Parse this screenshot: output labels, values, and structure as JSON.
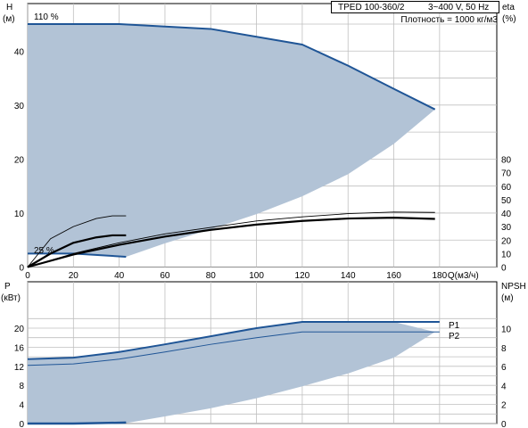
{
  "header": {
    "model": "TPED 100-360/2",
    "power": "3~400 V, 50 Hz",
    "density": "Плотность = 1000 кг/м3"
  },
  "top_chart": {
    "left_axis": {
      "name": "H",
      "unit": "(м)",
      "ticks": [
        0,
        10,
        20,
        30,
        40
      ]
    },
    "right_axis": {
      "name": "eta",
      "unit": "(%)",
      "ticks": [
        0,
        10,
        20,
        30,
        40,
        50,
        60,
        70,
        80
      ]
    },
    "x_axis": {
      "unit": "Q(м3/ч)",
      "ticks": [
        0,
        20,
        40,
        60,
        80,
        100,
        120,
        140,
        160,
        180
      ]
    },
    "label_110": "110 %",
    "label_min": "25 %"
  },
  "bottom_chart": {
    "left_axis": {
      "name": "P",
      "unit": "(кВт)",
      "ticks": [
        0,
        4,
        8,
        12,
        16,
        20
      ]
    },
    "right_axis": {
      "name": "NPSH",
      "unit": "(м)",
      "ticks": [
        0,
        2,
        4,
        6,
        8,
        10
      ]
    },
    "p1_label": "P1",
    "p2_label": "P2"
  },
  "chart_data": [
    {
      "type": "line",
      "x_label": "Q(м3/ч)",
      "xlim": [
        0,
        205
      ],
      "y_left_label": "H (м)",
      "ylim_left": [
        0,
        46
      ],
      "y_right_label": "eta (%)",
      "ylim_right": [
        0,
        82
      ],
      "grid": true,
      "series": [
        {
          "axis": "left",
          "kind": "max_curve_110",
          "color": "#1f5596",
          "x": [
            0,
            40,
            80,
            120,
            140,
            160,
            178
          ],
          "y": [
            45.0,
            45.0,
            44.1,
            41.2,
            37.3,
            33.0,
            29.2
          ]
        },
        {
          "axis": "left",
          "kind": "min_curve_25",
          "color": "#1f5596",
          "x": [
            0,
            20,
            43
          ],
          "y": [
            2.5,
            2.5,
            1.9
          ]
        },
        {
          "axis": "right",
          "kind": "eta_min",
          "color": "#000000",
          "x": [
            0,
            10,
            20,
            30,
            37,
            43
          ],
          "y": [
            0,
            21,
            30,
            36,
            38,
            38
          ]
        },
        {
          "axis": "right",
          "kind": "eta_mid",
          "color": "#000000",
          "x": [
            0,
            10,
            20,
            30,
            37,
            43
          ],
          "y": [
            0,
            10,
            18,
            22,
            23.5,
            23.5
          ]
        },
        {
          "axis": "right",
          "kind": "eta_max_thin",
          "color": "#000000",
          "x": [
            0,
            20,
            40,
            60,
            80,
            100,
            120,
            140,
            160,
            178
          ],
          "y": [
            0,
            10,
            18,
            24.6,
            29.4,
            34.2,
            37.2,
            39.6,
            40.8,
            40.5
          ]
        },
        {
          "axis": "right",
          "kind": "eta_max_thick",
          "color": "#000000",
          "x": [
            0,
            20,
            40,
            60,
            80,
            100,
            120,
            140,
            160,
            178
          ],
          "y": [
            0,
            9.3,
            16.5,
            22.6,
            27.6,
            31.5,
            34.2,
            36.0,
            36.6,
            35.7
          ]
        }
      ]
    },
    {
      "type": "line",
      "xlim": [
        0,
        205
      ],
      "y_left_label": "P (кВт)",
      "ylim_left": [
        0,
        23
      ],
      "y_right_label": "NPSH (м)",
      "ylim_right": [
        0,
        12
      ],
      "grid": true,
      "series": [
        {
          "name": "P1",
          "axis": "left",
          "color": "#1f5596",
          "x": [
            0,
            20,
            40,
            60,
            80,
            100,
            120,
            140,
            160,
            180
          ],
          "y": [
            13.5,
            13.8,
            15.0,
            16.6,
            18.3,
            20.0,
            21.3,
            21.3,
            21.3,
            21.3
          ]
        },
        {
          "name": "P2",
          "axis": "left",
          "color": "#1f5596",
          "x": [
            0,
            20,
            40,
            60,
            80,
            100,
            120,
            140,
            160,
            180
          ],
          "y": [
            12.2,
            12.5,
            13.5,
            15.0,
            16.6,
            18.0,
            19.2,
            19.2,
            19.2,
            19.2
          ]
        },
        {
          "name": "NPSH",
          "axis": "right",
          "color": "#1f5596",
          "x": [
            0,
            20,
            43
          ],
          "y": [
            0,
            0,
            0.1
          ]
        }
      ]
    }
  ],
  "colors": {
    "area": "#b2c3d6",
    "curve": "#1f5596",
    "grid": "#bfbfbf"
  }
}
